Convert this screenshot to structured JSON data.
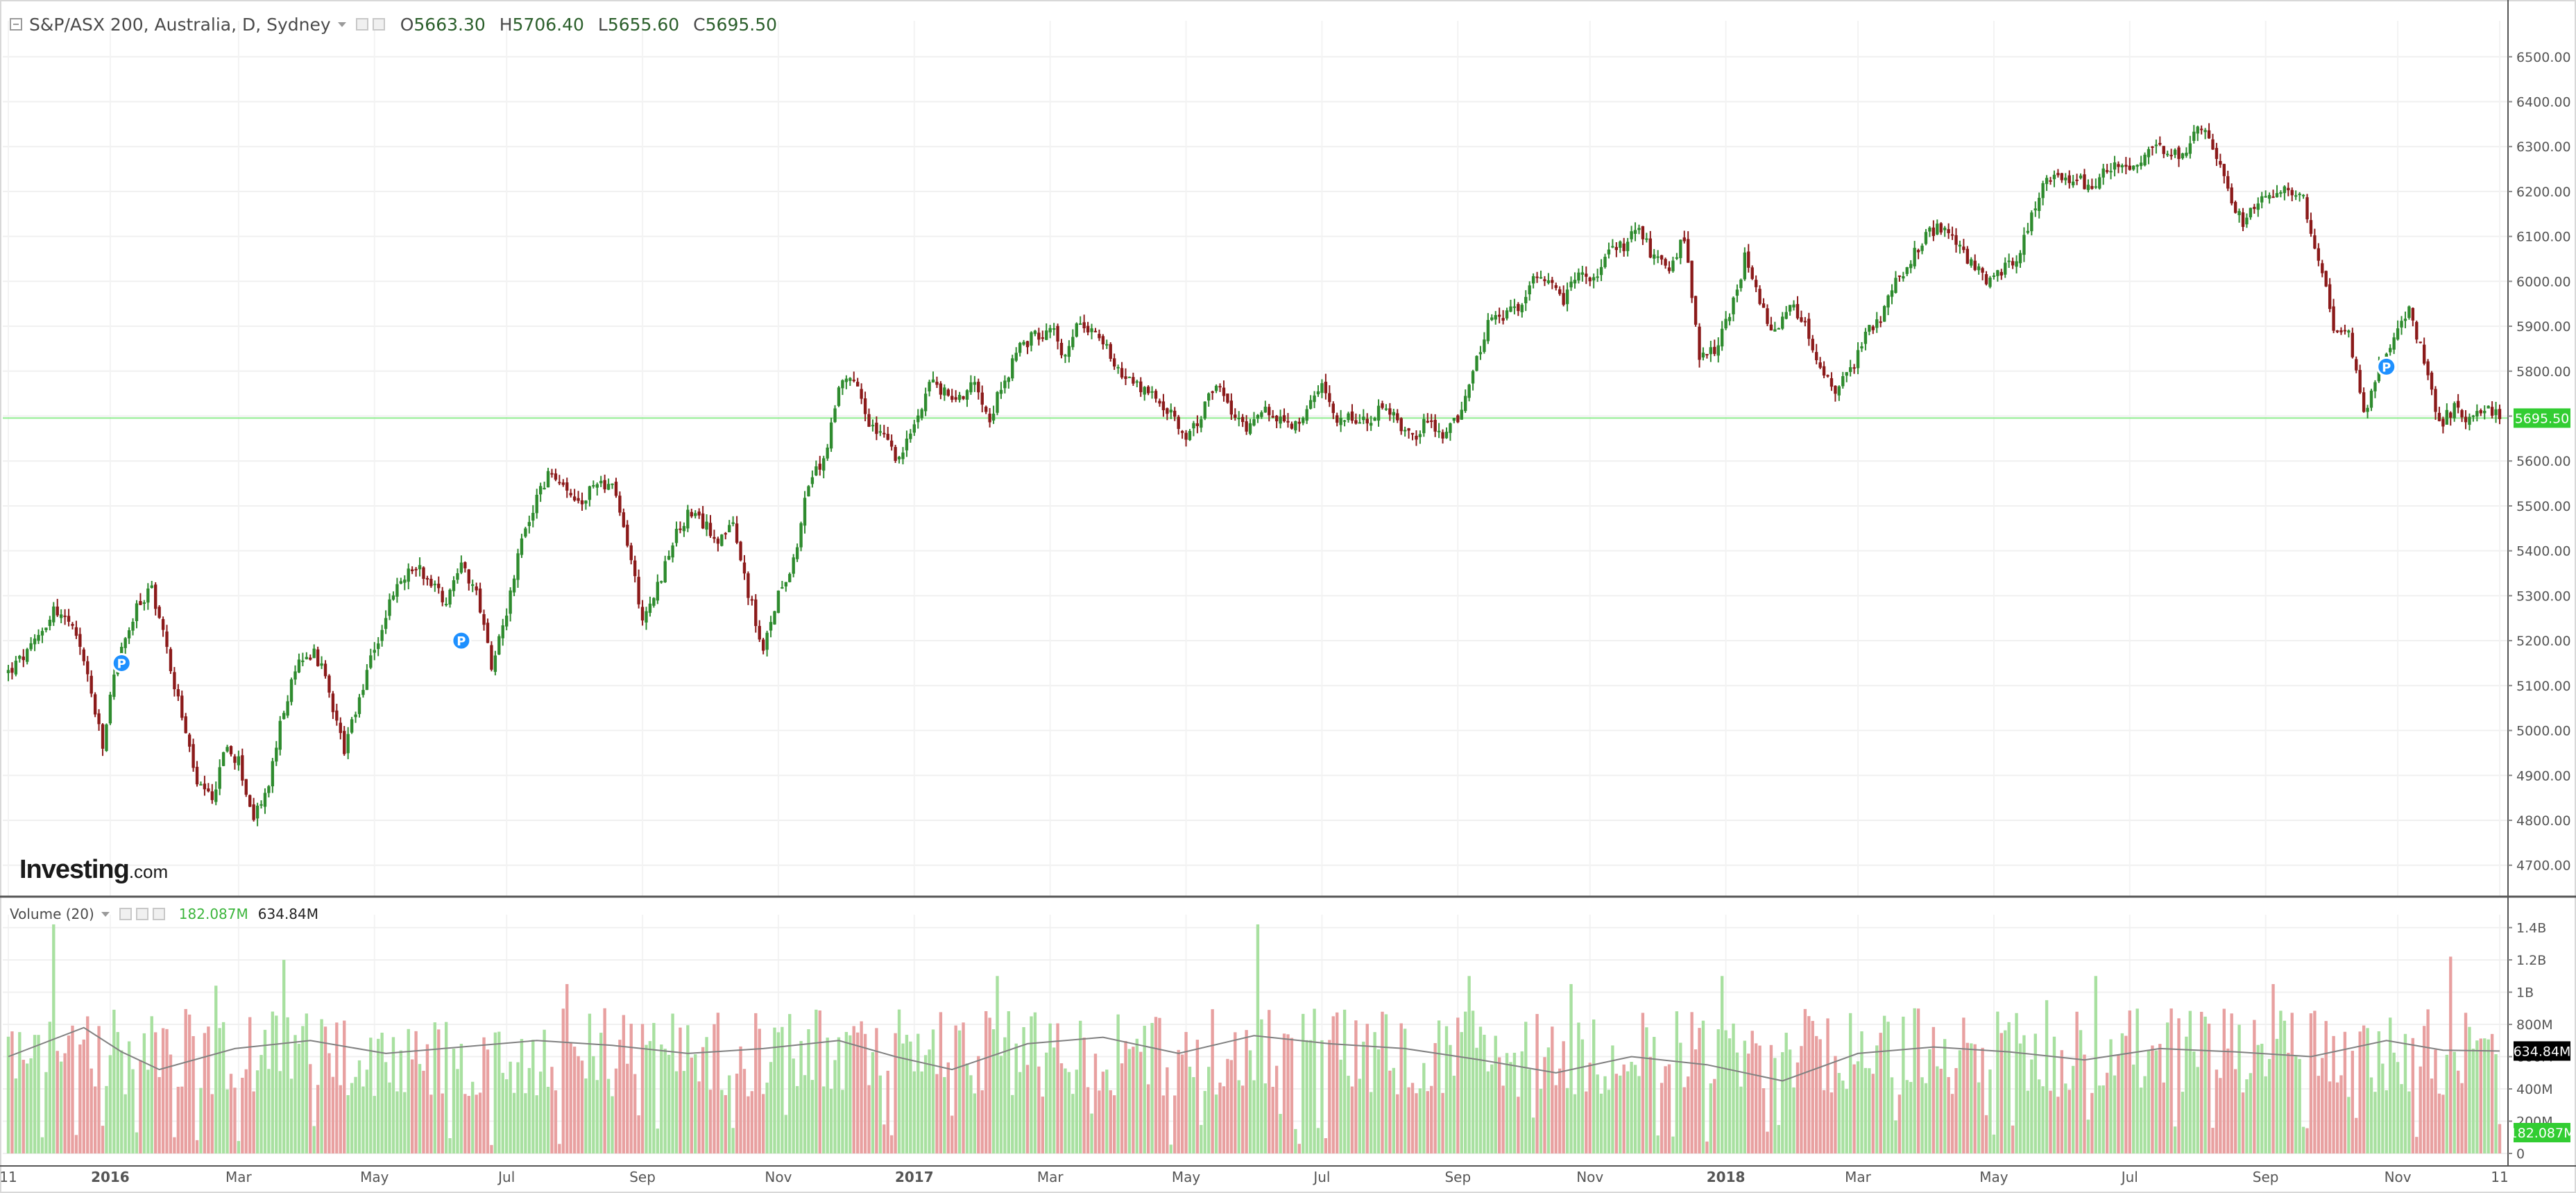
{
  "main_legend": {
    "symbol": "S&P/ASX 200, Australia, D, Sydney",
    "open_label": "O",
    "open": "5663.30",
    "high_label": "H",
    "high": "5706.40",
    "low_label": "L",
    "low": "5655.60",
    "close_label": "C",
    "close": "5695.50"
  },
  "volume_legend": {
    "title": "Volume (20)",
    "volume": "182.087M",
    "ma": "634.84M"
  },
  "logo": {
    "main": "Investing",
    "suffix": ".com"
  },
  "colors": {
    "up": "#2e8b2e",
    "down": "#8b1a1a",
    "volume_up": "#a8e0a0",
    "volume_down": "#e8a0a0",
    "last_price_bg": "#32cd32",
    "ma_line": "#808080"
  },
  "chart_data": [
    {
      "type": "candlestick",
      "title": "S&P/ASX 200, Australia, D, Sydney",
      "ylim": [
        4630,
        6580
      ],
      "y_ticks": [
        "6500.00",
        "6400.00",
        "6300.00",
        "6200.00",
        "6100.00",
        "6000.00",
        "5900.00",
        "5800.00",
        "5700.00",
        "5600.00",
        "5500.00",
        "5400.00",
        "5300.00",
        "5200.00",
        "5100.00",
        "5000.00",
        "4900.00",
        "4800.00",
        "4700.00"
      ],
      "x_ticks": [
        "11",
        "2016",
        "Mar",
        "May",
        "Jul",
        "Sep",
        "Nov",
        "2017",
        "Mar",
        "May",
        "Jul",
        "Sep",
        "Nov",
        "2018",
        "Mar",
        "May",
        "Jul",
        "Sep",
        "Nov",
        "11"
      ],
      "last_price": "5695.50",
      "last_value": 5695.5,
      "events_marker": "P",
      "price_path": [
        [
          0,
          5130
        ],
        [
          6,
          5180
        ],
        [
          12,
          5270
        ],
        [
          16,
          5240
        ],
        [
          20,
          5160
        ],
        [
          25,
          4960
        ],
        [
          28,
          5130
        ],
        [
          34,
          5270
        ],
        [
          38,
          5320
        ],
        [
          42,
          5180
        ],
        [
          46,
          5030
        ],
        [
          50,
          4880
        ],
        [
          54,
          4840
        ],
        [
          57,
          4960
        ],
        [
          61,
          4930
        ],
        [
          65,
          4800
        ],
        [
          69,
          4880
        ],
        [
          73,
          5050
        ],
        [
          77,
          5150
        ],
        [
          81,
          5180
        ],
        [
          85,
          5090
        ],
        [
          89,
          4950
        ],
        [
          93,
          5070
        ],
        [
          97,
          5180
        ],
        [
          101,
          5280
        ],
        [
          104,
          5330
        ],
        [
          108,
          5370
        ],
        [
          112,
          5330
        ],
        [
          116,
          5290
        ],
        [
          120,
          5380
        ],
        [
          124,
          5300
        ],
        [
          128,
          5150
        ],
        [
          132,
          5270
        ],
        [
          136,
          5420
        ],
        [
          140,
          5520
        ],
        [
          144,
          5580
        ],
        [
          148,
          5520
        ],
        [
          152,
          5500
        ],
        [
          156,
          5560
        ],
        [
          160,
          5540
        ],
        [
          164,
          5420
        ],
        [
          168,
          5250
        ],
        [
          172,
          5320
        ],
        [
          176,
          5420
        ],
        [
          180,
          5480
        ],
        [
          184,
          5460
        ],
        [
          188,
          5430
        ],
        [
          192,
          5450
        ],
        [
          196,
          5310
        ],
        [
          200,
          5170
        ],
        [
          204,
          5310
        ],
        [
          208,
          5380
        ],
        [
          212,
          5550
        ],
        [
          216,
          5600
        ],
        [
          220,
          5760
        ],
        [
          224,
          5780
        ],
        [
          228,
          5680
        ],
        [
          232,
          5650
        ],
        [
          236,
          5600
        ],
        [
          240,
          5680
        ],
        [
          244,
          5780
        ],
        [
          248,
          5750
        ],
        [
          252,
          5740
        ],
        [
          256,
          5780
        ],
        [
          260,
          5700
        ],
        [
          264,
          5780
        ],
        [
          268,
          5850
        ],
        [
          272,
          5880
        ],
        [
          276,
          5900
        ],
        [
          280,
          5830
        ],
        [
          284,
          5920
        ],
        [
          288,
          5880
        ],
        [
          292,
          5840
        ],
        [
          296,
          5780
        ],
        [
          300,
          5760
        ],
        [
          304,
          5740
        ],
        [
          308,
          5700
        ],
        [
          312,
          5650
        ],
        [
          316,
          5700
        ],
        [
          320,
          5780
        ],
        [
          324,
          5700
        ],
        [
          328,
          5680
        ],
        [
          332,
          5720
        ],
        [
          336,
          5690
        ],
        [
          340,
          5670
        ],
        [
          344,
          5710
        ],
        [
          348,
          5760
        ],
        [
          352,
          5700
        ],
        [
          356,
          5700
        ],
        [
          360,
          5680
        ],
        [
          364,
          5720
        ],
        [
          368,
          5690
        ],
        [
          372,
          5650
        ],
        [
          376,
          5690
        ],
        [
          380,
          5650
        ],
        [
          384,
          5700
        ],
        [
          388,
          5800
        ],
        [
          392,
          5900
        ],
        [
          396,
          5920
        ],
        [
          400,
          5940
        ],
        [
          404,
          6000
        ],
        [
          408,
          5990
        ],
        [
          412,
          5960
        ],
        [
          416,
          6020
        ],
        [
          420,
          6000
        ],
        [
          424,
          6060
        ],
        [
          428,
          6080
        ],
        [
          432,
          6120
        ],
        [
          436,
          6050
        ],
        [
          440,
          6020
        ],
        [
          444,
          6100
        ],
        [
          448,
          5820
        ],
        [
          452,
          5850
        ],
        [
          456,
          5920
        ],
        [
          460,
          6050
        ],
        [
          464,
          5950
        ],
        [
          468,
          5880
        ],
        [
          472,
          5950
        ],
        [
          476,
          5900
        ],
        [
          480,
          5800
        ],
        [
          484,
          5760
        ],
        [
          488,
          5800
        ],
        [
          492,
          5880
        ],
        [
          496,
          5920
        ],
        [
          500,
          6000
        ],
        [
          504,
          6050
        ],
        [
          508,
          6100
        ],
        [
          512,
          6120
        ],
        [
          516,
          6080
        ],
        [
          520,
          6040
        ],
        [
          524,
          6000
        ],
        [
          528,
          6020
        ],
        [
          532,
          6050
        ],
        [
          536,
          6150
        ],
        [
          540,
          6230
        ],
        [
          544,
          6220
        ],
        [
          548,
          6230
        ],
        [
          552,
          6200
        ],
        [
          556,
          6250
        ],
        [
          560,
          6270
        ],
        [
          564,
          6250
        ],
        [
          568,
          6300
        ],
        [
          572,
          6280
        ],
        [
          576,
          6280
        ],
        [
          580,
          6350
        ],
        [
          584,
          6300
        ],
        [
          588,
          6200
        ],
        [
          592,
          6130
        ],
        [
          596,
          6180
        ],
        [
          600,
          6190
        ],
        [
          604,
          6200
        ],
        [
          608,
          6180
        ],
        [
          612,
          6050
        ],
        [
          616,
          5900
        ],
        [
          620,
          5880
        ],
        [
          624,
          5700
        ],
        [
          628,
          5820
        ],
        [
          632,
          5880
        ],
        [
          636,
          5940
        ],
        [
          640,
          5820
        ],
        [
          644,
          5680
        ],
        [
          648,
          5720
        ],
        [
          652,
          5690
        ],
        [
          656,
          5720
        ],
        [
          660,
          5695.5
        ]
      ]
    },
    {
      "type": "volume_bar",
      "title": "Volume (20)",
      "ylim": [
        0,
        1.48
      ],
      "unit": "B",
      "y_ticks": [
        {
          "label": "1.4B",
          "value": 1.4
        },
        {
          "label": "1.2B",
          "value": 1.2
        },
        {
          "label": "1B",
          "value": 1.0
        },
        {
          "label": "800M",
          "value": 0.8
        },
        {
          "label": "600M",
          "value": 0.6
        },
        {
          "label": "400M",
          "value": 0.4
        },
        {
          "label": "200M",
          "value": 0.2
        },
        {
          "label": "0",
          "value": 0
        }
      ],
      "last_volume": "182.087M",
      "last_volume_value": 0.182,
      "ma_value": "634.84M",
      "ma_value_num": 0.635,
      "volume_spikes": [
        [
          12,
          1.42
        ],
        [
          21,
          0.85
        ],
        [
          55,
          1.04
        ],
        [
          73,
          1.2
        ],
        [
          129,
          0.75
        ],
        [
          148,
          1.05
        ],
        [
          158,
          0.9
        ],
        [
          262,
          1.1
        ],
        [
          271,
          0.85
        ],
        [
          331,
          1.42
        ],
        [
          387,
          1.1
        ],
        [
          414,
          1.05
        ],
        [
          454,
          1.1
        ],
        [
          505,
          0.9
        ],
        [
          540,
          0.95
        ],
        [
          553,
          1.1
        ],
        [
          600,
          1.05
        ],
        [
          647,
          1.22
        ]
      ],
      "ma_path": [
        [
          0,
          0.6
        ],
        [
          20,
          0.78
        ],
        [
          30,
          0.63
        ],
        [
          40,
          0.52
        ],
        [
          60,
          0.65
        ],
        [
          80,
          0.7
        ],
        [
          100,
          0.62
        ],
        [
          120,
          0.66
        ],
        [
          140,
          0.7
        ],
        [
          160,
          0.67
        ],
        [
          180,
          0.62
        ],
        [
          200,
          0.65
        ],
        [
          220,
          0.7
        ],
        [
          235,
          0.6
        ],
        [
          250,
          0.52
        ],
        [
          270,
          0.68
        ],
        [
          290,
          0.72
        ],
        [
          310,
          0.62
        ],
        [
          330,
          0.73
        ],
        [
          350,
          0.68
        ],
        [
          370,
          0.65
        ],
        [
          390,
          0.58
        ],
        [
          410,
          0.5
        ],
        [
          430,
          0.6
        ],
        [
          450,
          0.55
        ],
        [
          470,
          0.45
        ],
        [
          490,
          0.62
        ],
        [
          510,
          0.66
        ],
        [
          530,
          0.63
        ],
        [
          550,
          0.58
        ],
        [
          570,
          0.65
        ],
        [
          590,
          0.63
        ],
        [
          610,
          0.6
        ],
        [
          630,
          0.7
        ],
        [
          645,
          0.64
        ],
        [
          660,
          0.635
        ]
      ]
    }
  ]
}
